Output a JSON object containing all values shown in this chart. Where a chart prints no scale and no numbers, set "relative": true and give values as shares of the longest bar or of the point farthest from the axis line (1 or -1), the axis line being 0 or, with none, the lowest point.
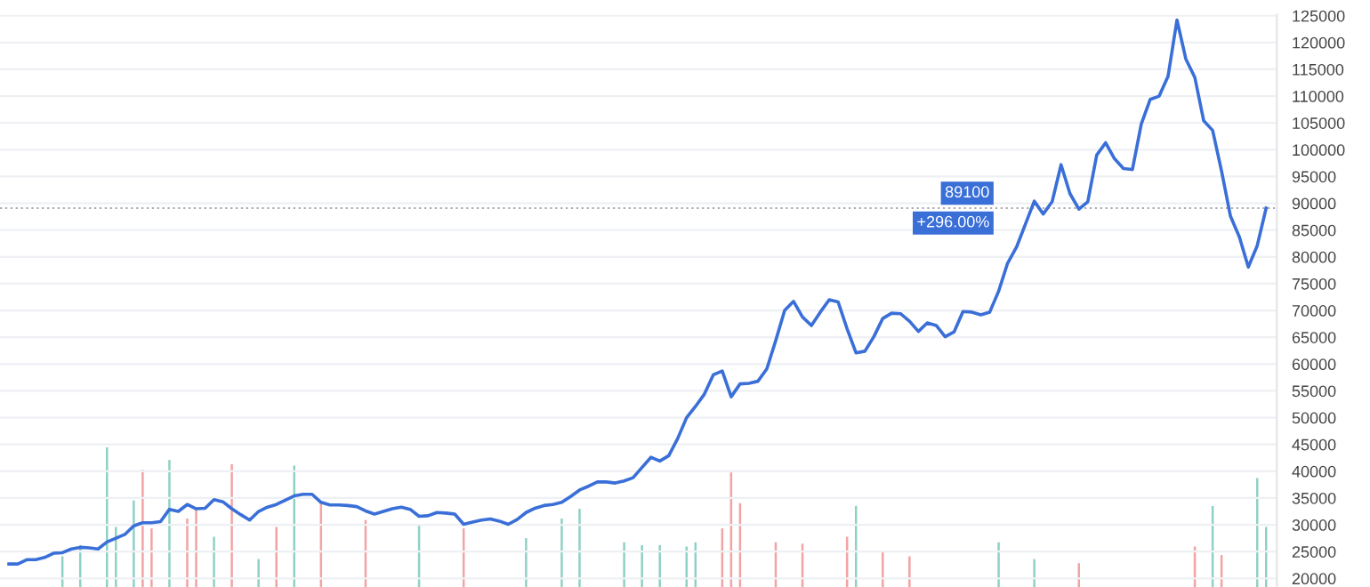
{
  "chart_data": [
    {
      "type": "line",
      "color": "#3a6fd8",
      "line_style": "solid",
      "marker": "none",
      "grid": true,
      "tick_labels": "y",
      "ylim": [
        18400,
        125200
      ],
      "yticks": [
        20000,
        25000,
        30000,
        35000,
        40000,
        45000,
        50000,
        55000,
        60000,
        65000,
        70000,
        75000,
        80000,
        85000,
        90000,
        95000,
        100000,
        105000,
        110000,
        115000,
        120000,
        125000
      ],
      "categories": [
        null,
        null,
        null,
        null,
        null,
        null,
        null,
        null,
        null,
        null,
        null,
        null,
        null,
        null,
        null,
        null,
        null,
        null,
        null,
        null,
        null,
        null,
        null,
        null,
        null,
        null,
        null,
        null,
        null,
        null,
        null,
        null,
        null,
        null,
        null,
        null,
        null,
        null,
        null,
        null,
        null,
        null,
        null,
        null,
        null,
        null,
        null,
        null,
        null,
        null,
        null,
        null,
        null,
        null,
        null,
        null,
        null,
        null,
        null,
        null,
        null,
        null,
        null,
        null,
        null,
        null,
        null,
        null,
        null,
        null,
        null,
        null,
        null,
        null,
        null,
        null,
        null,
        null,
        null,
        null,
        null,
        null,
        null,
        null,
        null,
        null,
        null,
        null,
        null,
        null,
        null,
        null,
        null,
        null,
        null,
        null,
        null,
        null,
        null,
        null,
        null,
        null,
        null,
        null,
        null,
        null,
        null,
        null,
        null,
        null,
        null,
        null,
        null,
        null,
        null,
        null,
        null,
        null,
        null,
        null,
        null,
        null,
        null,
        null,
        null,
        null,
        null,
        null,
        null,
        null,
        null,
        null,
        null,
        null,
        null,
        null,
        null,
        null,
        null,
        null,
        null,
        null
      ],
      "values": [
        22700,
        22700,
        23500,
        23500,
        23900,
        24700,
        24800,
        25500,
        25800,
        25700,
        25500,
        26800,
        27500,
        28200,
        29800,
        30400,
        30400,
        30600,
        32900,
        32500,
        33800,
        33000,
        33100,
        34700,
        34300,
        33000,
        31900,
        30900,
        32500,
        33300,
        33800,
        34600,
        35400,
        35700,
        35700,
        34200,
        33700,
        33700,
        33600,
        33400,
        32600,
        32000,
        32500,
        33000,
        33300,
        32900,
        31600,
        31700,
        32300,
        32200,
        32000,
        30100,
        30500,
        30900,
        31100,
        30700,
        30100,
        31000,
        32300,
        33100,
        33600,
        33800,
        34200,
        35300,
        36500,
        37200,
        38000,
        38000,
        37800,
        38200,
        38800,
        40700,
        42600,
        41900,
        42900,
        46100,
        50000,
        52100,
        54400,
        58000,
        58700,
        53900,
        56300,
        56400,
        56800,
        59100,
        64400,
        70000,
        71700,
        68800,
        67200,
        69700,
        72000,
        71600,
        66600,
        62100,
        62400,
        65100,
        68500,
        69500,
        69400,
        68000,
        66100,
        67700,
        67200,
        65100,
        66000,
        69800,
        69700,
        69200,
        69700,
        73600,
        78800,
        81800,
        86100,
        90400,
        88000,
        90300,
        97200,
        91800,
        88900,
        90300,
        99000,
        101300,
        98300,
        96500,
        96300,
        104800,
        109400,
        110000,
        113700,
        124200,
        116900,
        113500,
        105400,
        103600,
        96000,
        87600,
        83700,
        78100,
        82100,
        89100
      ],
      "ref_lines": [
        {
          "axis": "y",
          "value": 89100,
          "label": "89100",
          "line_style": "dotted"
        }
      ],
      "annotations": [
        "+296.00%"
      ]
    },
    {
      "type": "bar",
      "relative": true,
      "tick_labels": false,
      "categories": [
        null,
        null,
        null,
        null,
        null,
        null,
        null,
        null,
        null,
        null,
        null,
        null,
        null,
        null,
        null,
        null,
        null,
        null,
        null,
        null,
        null,
        null,
        null,
        null,
        null,
        null,
        null,
        null,
        null,
        null,
        null,
        null,
        null,
        null,
        null,
        null,
        null,
        null,
        null,
        null,
        null,
        null,
        null,
        null,
        null,
        null,
        null,
        null,
        null,
        null,
        null,
        null,
        null,
        null,
        null,
        null,
        null,
        null,
        null,
        null,
        null,
        null,
        null,
        null,
        null,
        null,
        null,
        null,
        null,
        null,
        null,
        null,
        null,
        null,
        null,
        null,
        null,
        null,
        null,
        null,
        null,
        null,
        null,
        null,
        null,
        null,
        null,
        null,
        null,
        null,
        null,
        null,
        null,
        null,
        null,
        null,
        null,
        null,
        null,
        null,
        null,
        null,
        null,
        null,
        null,
        null,
        null,
        null,
        null,
        null,
        null,
        null,
        null,
        null,
        null,
        null,
        null,
        null,
        null,
        null,
        null,
        null,
        null,
        null,
        null,
        null,
        null,
        null,
        null,
        null,
        null,
        null,
        null,
        null,
        null,
        null,
        null,
        null,
        null,
        null,
        null,
        null
      ],
      "values": [
        null,
        null,
        null,
        null,
        null,
        null,
        0.22,
        null,
        0.3,
        null,
        null,
        1.0,
        0.43,
        null,
        0.62,
        0.84,
        0.42,
        null,
        0.91,
        null,
        0.49,
        0.56,
        null,
        0.36,
        null,
        0.88,
        null,
        null,
        0.2,
        null,
        0.43,
        null,
        0.87,
        null,
        null,
        0.61,
        null,
        null,
        null,
        null,
        0.48,
        null,
        null,
        null,
        null,
        null,
        0.45,
        null,
        null,
        null,
        null,
        0.42,
        null,
        null,
        null,
        null,
        null,
        null,
        0.35,
        null,
        null,
        null,
        0.49,
        null,
        0.56,
        null,
        null,
        null,
        null,
        0.32,
        null,
        0.3,
        null,
        0.3,
        null,
        null,
        0.29,
        0.32,
        null,
        null,
        0.42,
        0.82,
        0.6,
        null,
        null,
        null,
        0.32,
        null,
        null,
        0.31,
        null,
        null,
        null,
        null,
        0.36,
        0.58,
        null,
        null,
        0.26,
        null,
        null,
        0.22,
        null,
        null,
        null,
        null,
        null,
        null,
        null,
        null,
        null,
        0.32,
        null,
        null,
        null,
        0.2,
        null,
        null,
        null,
        null,
        0.17,
        null,
        null,
        null,
        null,
        null,
        null,
        null,
        null,
        null,
        null,
        null,
        null,
        0.29,
        null,
        0.58,
        0.23,
        null,
        null,
        null,
        0.78,
        0.43
      ],
      "colors": [
        null,
        null,
        null,
        null,
        null,
        null,
        "#8fd1c4",
        null,
        "#8fd1c4",
        null,
        null,
        "#8fd1c4",
        "#8fd1c4",
        null,
        "#8fd1c4",
        "#f2a3a3",
        "#f2a3a3",
        null,
        "#8fd1c4",
        null,
        "#f2a3a3",
        "#f2a3a3",
        null,
        "#8fd1c4",
        null,
        "#f2a3a3",
        null,
        null,
        "#8fd1c4",
        null,
        "#f2a3a3",
        null,
        "#8fd1c4",
        null,
        null,
        "#f2a3a3",
        null,
        null,
        null,
        null,
        "#f2a3a3",
        null,
        null,
        null,
        null,
        null,
        "#8fd1c4",
        null,
        null,
        null,
        null,
        "#f2a3a3",
        null,
        null,
        null,
        null,
        null,
        null,
        "#8fd1c4",
        null,
        null,
        null,
        "#8fd1c4",
        null,
        "#8fd1c4",
        null,
        null,
        null,
        null,
        "#8fd1c4",
        null,
        "#8fd1c4",
        null,
        "#8fd1c4",
        null,
        null,
        "#8fd1c4",
        "#8fd1c4",
        null,
        null,
        "#f2a3a3",
        "#f2a3a3",
        "#f2a3a3",
        null,
        null,
        null,
        "#f2a3a3",
        null,
        null,
        "#f2a3a3",
        null,
        null,
        null,
        null,
        "#f2a3a3",
        "#8fd1c4",
        null,
        null,
        "#f2a3a3",
        null,
        null,
        "#f2a3a3",
        null,
        null,
        null,
        null,
        null,
        null,
        null,
        null,
        null,
        "#8fd1c4",
        null,
        null,
        null,
        "#8fd1c4",
        null,
        null,
        null,
        null,
        "#f2a3a3",
        null,
        null,
        null,
        null,
        null,
        null,
        null,
        null,
        null,
        null,
        null,
        null,
        "#f2a3a3",
        null,
        "#8fd1c4",
        "#f2a3a3",
        null,
        null,
        null,
        "#8fd1c4",
        "#8fd1c4"
      ]
    }
  ]
}
